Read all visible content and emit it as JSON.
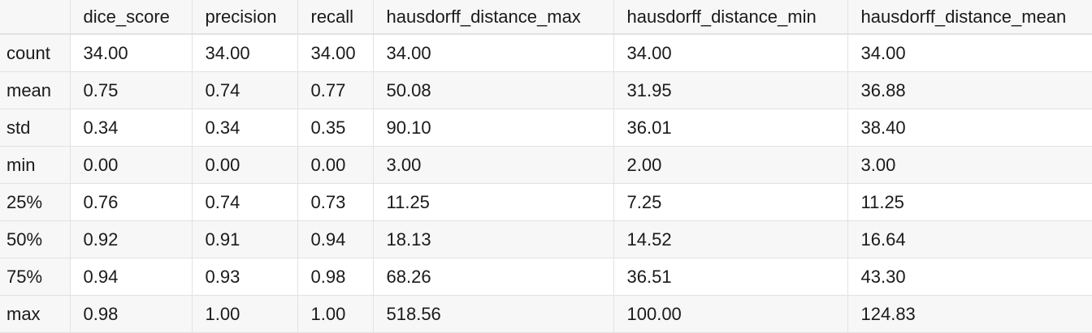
{
  "table": {
    "columns": [
      "",
      "dice_score",
      "precision",
      "recall",
      "hausdorff_distance_max",
      "hausdorff_distance_min",
      "hausdorff_distance_mean"
    ],
    "rows": [
      {
        "label": "count",
        "values": [
          "34.00",
          "34.00",
          "34.00",
          "34.00",
          "34.00",
          "34.00"
        ]
      },
      {
        "label": "mean",
        "values": [
          "0.75",
          "0.74",
          "0.77",
          "50.08",
          "31.95",
          "36.88"
        ]
      },
      {
        "label": "std",
        "values": [
          "0.34",
          "0.34",
          "0.35",
          "90.10",
          "36.01",
          "38.40"
        ]
      },
      {
        "label": "min",
        "values": [
          "0.00",
          "0.00",
          "0.00",
          "3.00",
          "2.00",
          "3.00"
        ]
      },
      {
        "label": "25%",
        "values": [
          "0.76",
          "0.74",
          "0.73",
          "11.25",
          "7.25",
          "11.25"
        ]
      },
      {
        "label": "50%",
        "values": [
          "0.92",
          "0.91",
          "0.94",
          "18.13",
          "14.52",
          "16.64"
        ]
      },
      {
        "label": "75%",
        "values": [
          "0.94",
          "0.93",
          "0.98",
          "68.26",
          "36.51",
          "43.30"
        ]
      },
      {
        "label": "max",
        "values": [
          "0.98",
          "1.00",
          "1.00",
          "518.56",
          "100.00",
          "124.83"
        ]
      }
    ]
  }
}
